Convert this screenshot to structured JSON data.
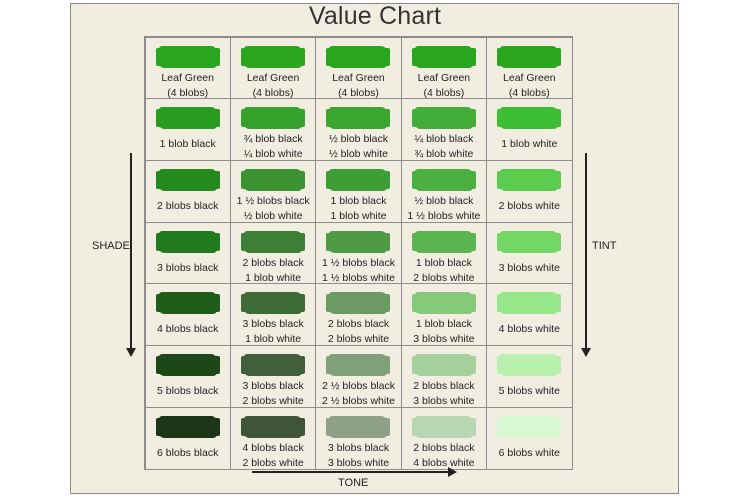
{
  "title": "Value Chart",
  "labels": {
    "shade": "SHADE",
    "tint": "TINT",
    "tone": "TONE"
  },
  "rows": [
    [
      {
        "color": "#2aa51e",
        "lines": [
          "Leaf Green",
          "(4 blobs)"
        ]
      },
      {
        "color": "#2aa51e",
        "lines": [
          "Leaf Green",
          "(4 blobs)"
        ]
      },
      {
        "color": "#2aa51e",
        "lines": [
          "Leaf Green",
          "(4 blobs)"
        ]
      },
      {
        "color": "#2aa51e",
        "lines": [
          "Leaf Green",
          "(4 blobs)"
        ]
      },
      {
        "color": "#2aa51e",
        "lines": [
          "Leaf Green",
          "(4 blobs)"
        ]
      }
    ],
    [
      {
        "color": "#279c1e",
        "lines": [
          "1 blob black"
        ]
      },
      {
        "color": "#35a22c",
        "lines": [
          "¾ blob black",
          "¼ blob white"
        ]
      },
      {
        "color": "#3aa52f",
        "lines": [
          "½ blob black",
          "½ blob white"
        ]
      },
      {
        "color": "#42ad38",
        "lines": [
          "¼ blob black",
          "¾ blob white"
        ]
      },
      {
        "color": "#3dbf33",
        "lines": [
          "1 blob white"
        ]
      }
    ],
    [
      {
        "color": "#248a1d",
        "lines": [
          "2 blobs black"
        ]
      },
      {
        "color": "#3b9431",
        "lines": [
          "1 ½ blobs black",
          "½ blob white"
        ]
      },
      {
        "color": "#3f9d36",
        "lines": [
          "1 blob black",
          "1 blob white"
        ]
      },
      {
        "color": "#4caf42",
        "lines": [
          "½ blob black",
          "1 ½ blobs white"
        ]
      },
      {
        "color": "#5ccc4f",
        "lines": [
          "2 blobs white"
        ]
      }
    ],
    [
      {
        "color": "#237a1e",
        "lines": [
          "3 blobs black"
        ]
      },
      {
        "color": "#3d7f36",
        "lines": [
          "2 blobs black",
          "1 blob white"
        ]
      },
      {
        "color": "#4e9a45",
        "lines": [
          "1 ½ blobs black",
          "1 ½ blobs white"
        ]
      },
      {
        "color": "#5cb450",
        "lines": [
          "1 blob black",
          "2 blobs white"
        ]
      },
      {
        "color": "#73d765",
        "lines": [
          "3 blobs white"
        ]
      }
    ],
    [
      {
        "color": "#1f5c1a",
        "lines": [
          "4 blobs black"
        ]
      },
      {
        "color": "#3c6b35",
        "lines": [
          "3 blobs black",
          "1 blob white"
        ]
      },
      {
        "color": "#6b9a63",
        "lines": [
          "2 blobs black",
          "2 blobs white"
        ]
      },
      {
        "color": "#86c97a",
        "lines": [
          "1  blob black",
          "3 blobs white"
        ]
      },
      {
        "color": "#96e68a",
        "lines": [
          "4 blobs white"
        ]
      }
    ],
    [
      {
        "color": "#1e4717",
        "lines": [
          "5 blobs black"
        ]
      },
      {
        "color": "#405f3a",
        "lines": [
          "3 blobs black",
          "2 blobs white"
        ]
      },
      {
        "color": "#80a079",
        "lines": [
          "2 ½ blobs black",
          "2 ½ blobs white"
        ]
      },
      {
        "color": "#a5d09b",
        "lines": [
          "2 blobs black",
          "3 blobs white"
        ]
      },
      {
        "color": "#b8f0ad",
        "lines": [
          "5 blobs white"
        ]
      }
    ],
    [
      {
        "color": "#1b3516",
        "lines": [
          "6 blobs black"
        ]
      },
      {
        "color": "#3e553a",
        "lines": [
          "4 blobs black",
          "2 blobs white"
        ]
      },
      {
        "color": "#8ea187",
        "lines": [
          "3 blobs black",
          "3 blobs white"
        ]
      },
      {
        "color": "#b9d6b3",
        "lines": [
          "2 blobs black",
          "4 blobs white"
        ]
      },
      {
        "color": "#d8f8d2",
        "lines": [
          "6 blobs white"
        ]
      }
    ]
  ]
}
